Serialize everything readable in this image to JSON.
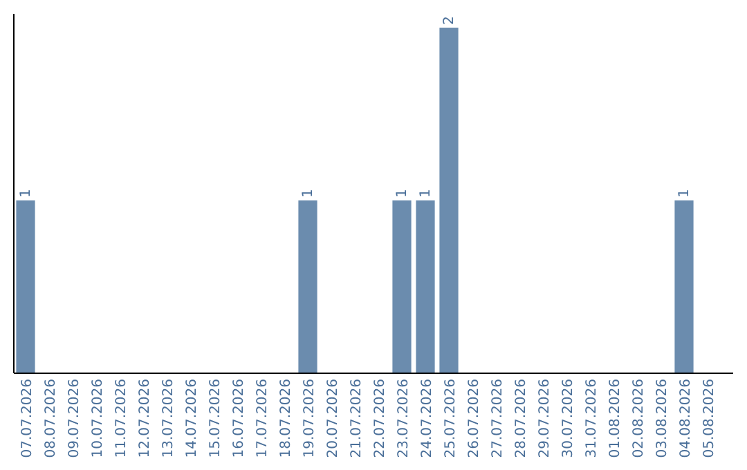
{
  "chart_data": {
    "type": "bar",
    "categories": [
      "07.07.2026",
      "08.07.2026",
      "09.07.2026",
      "10.07.2026",
      "11.07.2026",
      "12.07.2026",
      "13.07.2026",
      "14.07.2026",
      "15.07.2026",
      "16.07.2026",
      "17.07.2026",
      "18.07.2026",
      "19.07.2026",
      "20.07.2026",
      "21.07.2026",
      "22.07.2026",
      "23.07.2026",
      "24.07.2026",
      "25.07.2026",
      "26.07.2026",
      "27.07.2026",
      "28.07.2026",
      "29.07.2026",
      "30.07.2026",
      "31.07.2026",
      "01.08.2026",
      "02.08.2026",
      "03.08.2026",
      "04.08.2026",
      "05.08.2026"
    ],
    "values": [
      1,
      0,
      0,
      0,
      0,
      0,
      0,
      0,
      0,
      0,
      0,
      0,
      1,
      0,
      0,
      0,
      1,
      1,
      2,
      0,
      0,
      0,
      0,
      0,
      0,
      0,
      0,
      0,
      1,
      0
    ],
    "value_labels": [
      "1",
      null,
      null,
      null,
      null,
      null,
      null,
      null,
      null,
      null,
      null,
      null,
      "1",
      null,
      null,
      null,
      "1",
      "1",
      "2",
      null,
      null,
      null,
      null,
      null,
      null,
      null,
      null,
      null,
      "1",
      null
    ],
    "color": "#6b8cae",
    "ylim": [
      0,
      2.08
    ],
    "tick_labels": "x"
  }
}
